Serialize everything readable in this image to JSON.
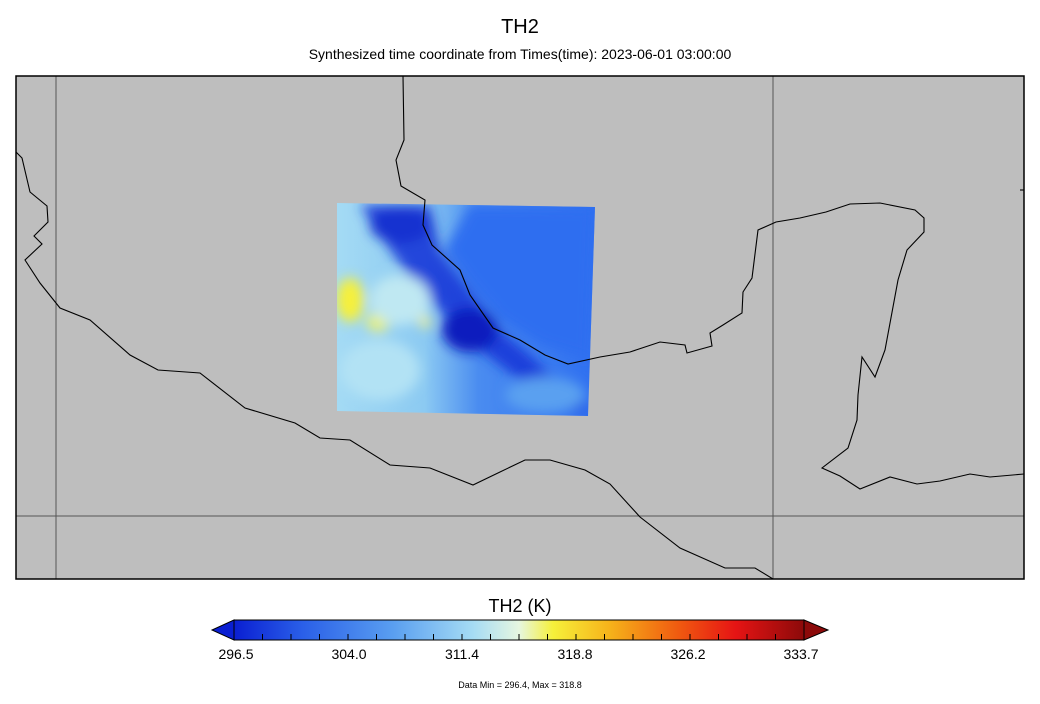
{
  "title": "TH2",
  "subtitle": "Synthesized time coordinate from Times(time): 2023-06-01 03:00:00",
  "colorbar": {
    "title": "TH2 (K)",
    "ticks": [
      "296.5",
      "304.0",
      "311.4",
      "318.8",
      "326.2",
      "333.7"
    ],
    "colors": [
      "#0a1fd2",
      "#2a5fe8",
      "#5a9ff0",
      "#a6dcf4",
      "#f6f03a",
      "#f6b21a",
      "#f05a10",
      "#e61414",
      "#8c0a0a"
    ]
  },
  "footnote": "Data Min = 296.4, Max = 318.8",
  "map": {
    "background": "#bebebe",
    "frame_color": "#000000",
    "grid_color": "#555555"
  }
}
